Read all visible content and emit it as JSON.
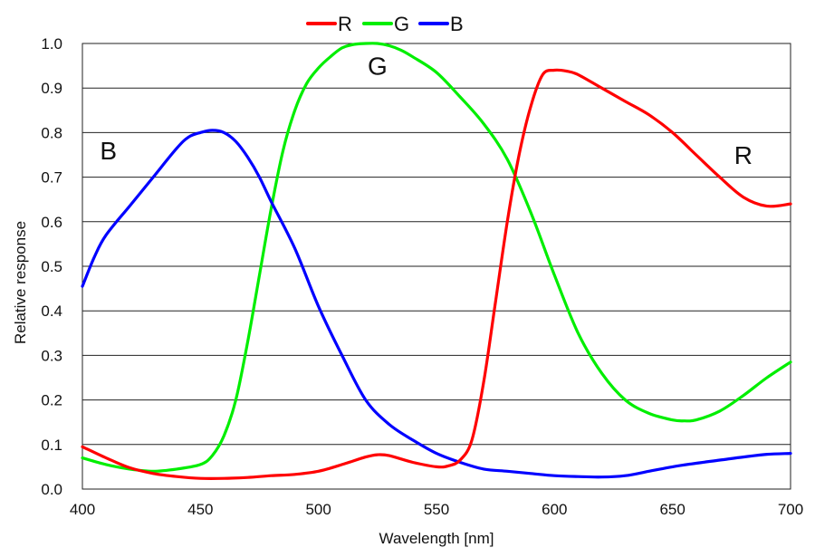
{
  "chart_data": {
    "type": "line",
    "title": "",
    "xlabel": "Wavelength [nm]",
    "ylabel": "Relative response",
    "xlim": [
      400,
      700
    ],
    "ylim": [
      0.0,
      1.0
    ],
    "x_ticks": [
      400,
      450,
      500,
      550,
      600,
      650,
      700
    ],
    "x_tick_labels": [
      "400",
      "450",
      "500",
      "550",
      "600",
      "650",
      "700"
    ],
    "y_ticks": [
      0.0,
      0.1,
      0.2,
      0.3,
      0.4,
      0.5,
      0.6,
      0.7,
      0.8,
      0.9,
      1.0
    ],
    "y_tick_labels": [
      "0.0",
      "0.1",
      "0.2",
      "0.3",
      "0.4",
      "0.5",
      "0.6",
      "0.7",
      "0.8",
      "0.9",
      "1.0"
    ],
    "grid": "horizontal",
    "legend_position": "top-center",
    "series": [
      {
        "name": "R",
        "color": "#ff0000",
        "x": [
          400,
          410,
          420,
          430,
          440,
          450,
          460,
          470,
          480,
          490,
          500,
          510,
          520,
          525,
          530,
          540,
          550,
          555,
          560,
          565,
          570,
          575,
          580,
          585,
          590,
          595,
          600,
          605,
          610,
          620,
          630,
          640,
          650,
          660,
          670,
          680,
          690,
          700
        ],
        "y": [
          0.095,
          0.07,
          0.048,
          0.035,
          0.028,
          0.024,
          0.024,
          0.026,
          0.03,
          0.033,
          0.04,
          0.055,
          0.072,
          0.077,
          0.075,
          0.06,
          0.05,
          0.052,
          0.065,
          0.11,
          0.24,
          0.42,
          0.6,
          0.75,
          0.86,
          0.93,
          0.94,
          0.938,
          0.93,
          0.9,
          0.87,
          0.84,
          0.8,
          0.75,
          0.7,
          0.655,
          0.635,
          0.64
        ]
      },
      {
        "name": "G",
        "color": "#00ee00",
        "x": [
          400,
          410,
          420,
          430,
          440,
          450,
          455,
          460,
          465,
          470,
          475,
          480,
          485,
          490,
          495,
          500,
          505,
          510,
          515,
          520,
          525,
          530,
          535,
          540,
          550,
          560,
          570,
          580,
          590,
          600,
          610,
          620,
          630,
          640,
          650,
          655,
          660,
          670,
          680,
          690,
          700
        ],
        "y": [
          0.07,
          0.055,
          0.045,
          0.04,
          0.045,
          0.055,
          0.075,
          0.12,
          0.2,
          0.33,
          0.48,
          0.63,
          0.76,
          0.85,
          0.91,
          0.945,
          0.97,
          0.99,
          0.998,
          1.0,
          1.0,
          0.995,
          0.985,
          0.97,
          0.935,
          0.88,
          0.82,
          0.74,
          0.62,
          0.48,
          0.35,
          0.26,
          0.2,
          0.17,
          0.155,
          0.153,
          0.155,
          0.175,
          0.21,
          0.25,
          0.285
        ]
      },
      {
        "name": "B",
        "color": "#0000ff",
        "x": [
          400,
          405,
          410,
          420,
          430,
          440,
          445,
          450,
          455,
          460,
          465,
          470,
          475,
          480,
          490,
          500,
          510,
          520,
          530,
          540,
          550,
          560,
          570,
          580,
          590,
          600,
          610,
          620,
          630,
          640,
          650,
          660,
          670,
          680,
          690,
          700
        ],
        "y": [
          0.455,
          0.52,
          0.57,
          0.635,
          0.7,
          0.765,
          0.79,
          0.8,
          0.805,
          0.8,
          0.78,
          0.745,
          0.7,
          0.645,
          0.54,
          0.41,
          0.3,
          0.2,
          0.145,
          0.11,
          0.08,
          0.06,
          0.045,
          0.04,
          0.035,
          0.03,
          0.028,
          0.027,
          0.03,
          0.04,
          0.05,
          0.058,
          0.065,
          0.072,
          0.078,
          0.08
        ]
      }
    ],
    "annotations": [
      {
        "text": "B",
        "x": 411,
        "y": 0.74
      },
      {
        "text": "G",
        "x": 525,
        "y": 0.93
      },
      {
        "text": "R",
        "x": 680,
        "y": 0.73
      }
    ]
  }
}
